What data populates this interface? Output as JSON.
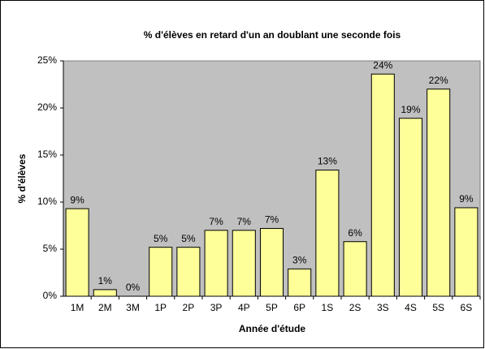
{
  "chart_data": {
    "type": "bar",
    "title": "% d'élèves en retard d'un an doublant une seconde fois",
    "x_label": "Année d'étude",
    "y_label": "% d'élèves",
    "categories": [
      "1M",
      "2M",
      "3M",
      "1P",
      "2P",
      "3P",
      "4P",
      "5P",
      "6P",
      "1S",
      "2S",
      "3S",
      "4S",
      "5S",
      "6S"
    ],
    "values": [
      9.3,
      0.7,
      0,
      5.2,
      5.2,
      7.0,
      7.0,
      7.2,
      2.9,
      13.4,
      5.8,
      23.6,
      18.9,
      22.0,
      9.4
    ],
    "value_labels": [
      "9%",
      "1%",
      "0%",
      "5%",
      "5%",
      "7%",
      "7%",
      "7%",
      "3%",
      "13%",
      "6%",
      "24%",
      "19%",
      "22%",
      "9%"
    ],
    "color": "#ffff99",
    "plot_background": "#c0c0c0",
    "ylim": [
      0,
      25
    ],
    "yticks": [
      {
        "value": 0,
        "label": "0%"
      },
      {
        "value": 5,
        "label": "5%"
      },
      {
        "value": 10,
        "label": "10%"
      },
      {
        "value": 15,
        "label": "15%"
      },
      {
        "value": 20,
        "label": "20%"
      },
      {
        "value": 25,
        "label": "25%"
      }
    ],
    "grid": false
  }
}
